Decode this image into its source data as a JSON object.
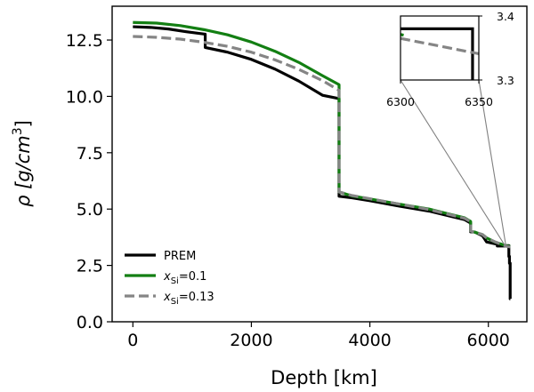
{
  "chart_data": {
    "type": "line",
    "xlabel": "Depth [km]",
    "ylabel_prefix": "ρ [g/cm",
    "ylabel_sup": "3",
    "ylabel_suffix": "]",
    "xlim": [
      -350,
      6650
    ],
    "ylim": [
      0,
      14.0
    ],
    "x_ticks": [
      0,
      2000,
      4000,
      6000
    ],
    "x_tick_labels": [
      "0",
      "2000",
      "4000",
      "6000"
    ],
    "y_ticks": [
      0.0,
      2.5,
      5.0,
      7.5,
      10.0,
      12.5
    ],
    "y_tick_labels": [
      "0.0",
      "2.5",
      "5.0",
      "7.5",
      "10.0",
      "12.5"
    ],
    "grid": false,
    "legend_position": "lower-left",
    "series": [
      {
        "name_main": "PREM",
        "name_sub": "",
        "name_tail": "",
        "color": "#000000",
        "dash": "solid",
        "x": [
          0,
          300,
          600,
          900,
          1221,
          1221,
          1600,
          2000,
          2400,
          2800,
          3200,
          3480,
          3480,
          3700,
          4000,
          4500,
          5000,
          5600,
          5701,
          5701,
          5771,
          5771,
          5900,
          5971,
          5971,
          6151,
          6151,
          6291,
          6291,
          6346,
          6346,
          6356,
          6356,
          6368,
          6368,
          6371
        ],
        "y": [
          13.09,
          13.06,
          12.99,
          12.87,
          12.76,
          12.17,
          11.96,
          11.64,
          11.21,
          10.68,
          10.05,
          9.9,
          5.57,
          5.5,
          5.37,
          5.13,
          4.91,
          4.53,
          4.38,
          3.99,
          3.98,
          3.98,
          3.82,
          3.54,
          3.54,
          3.44,
          3.36,
          3.36,
          3.38,
          3.38,
          2.9,
          2.9,
          2.6,
          2.6,
          1.02,
          1.02
        ]
      },
      {
        "name_main": "x",
        "name_sub": "Si",
        "name_tail": "=0.1",
        "color": "#137f13",
        "dash": "solid",
        "x": [
          0,
          400,
          800,
          1200,
          1600,
          2000,
          2400,
          2800,
          3200,
          3480,
          3480,
          3700,
          4000,
          4500,
          5000,
          5600,
          5701,
          5701,
          5900,
          5971,
          6100,
          6300,
          6371
        ],
        "y": [
          13.28,
          13.25,
          13.14,
          12.96,
          12.73,
          12.41,
          12.0,
          11.51,
          10.92,
          10.52,
          5.76,
          5.58,
          5.45,
          5.22,
          5.0,
          4.61,
          4.45,
          4.03,
          3.87,
          3.72,
          3.55,
          3.37,
          3.34
        ]
      },
      {
        "name_main": "x",
        "name_sub": "Si",
        "name_tail": "=0.13",
        "color": "#858585",
        "dash": "dashed",
        "x": [
          0,
          400,
          800,
          1200,
          1600,
          2000,
          2400,
          2800,
          3200,
          3480,
          3480,
          3700,
          4000,
          4500,
          5000,
          5600,
          5701,
          5701,
          5900,
          5971,
          6100,
          6300,
          6371
        ],
        "y": [
          12.66,
          12.62,
          12.54,
          12.4,
          12.22,
          11.96,
          11.62,
          11.2,
          10.7,
          10.27,
          5.76,
          5.6,
          5.46,
          5.22,
          4.98,
          4.59,
          4.44,
          4.03,
          3.87,
          3.72,
          3.56,
          3.35,
          3.32
        ]
      }
    ],
    "inset": {
      "xlim": [
        6300,
        6350
      ],
      "ylim": [
        3.3,
        3.4
      ],
      "x_ticks": [
        6300,
        6350
      ],
      "x_tick_labels": [
        "6300",
        "6350"
      ],
      "y_ticks": [
        3.3,
        3.4
      ],
      "y_tick_labels": [
        "3.3",
        "3.4"
      ],
      "series": [
        {
          "color": "#000000",
          "dash": "solid",
          "x": [
            6300,
            6346,
            6346
          ],
          "y": [
            3.38,
            3.38,
            3.28
          ]
        },
        {
          "color": "#137f13",
          "dash": "solid",
          "x": [
            6300,
            6302
          ],
          "y": [
            3.371,
            3.37
          ]
        },
        {
          "color": "#858585",
          "dash": "dashed",
          "x": [
            6300,
            6350
          ],
          "y": [
            3.365,
            3.341
          ]
        }
      ]
    }
  }
}
